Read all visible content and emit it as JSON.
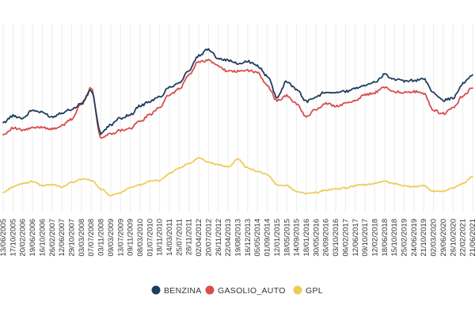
{
  "chart_data": {
    "type": "line",
    "title": "",
    "xlabel": "",
    "ylabel": "",
    "ylim": [
      0.4,
      2.1
    ],
    "grid": "vertical",
    "legend_position": "bottom-center",
    "x": [
      "13/06/2005",
      "17/10/2005",
      "20/02/2006",
      "19/06/2006",
      "16/10/2006",
      "26/02/2007",
      "12/06/2007",
      "29/10/2007",
      "03/03/2008",
      "07/07/2008",
      "03/11/2008",
      "09/03/2009",
      "13/07/2009",
      "09/11/2009",
      "08/03/2010",
      "01/07/2010",
      "18/11/2010",
      "14/03/2011",
      "25/07/2011",
      "28/11/2011",
      "02/04/2012",
      "20/07/2012",
      "26/11/2012",
      "22/04/2013",
      "19/08/2013",
      "16/12/2013",
      "05/05/2014",
      "01/09/2014",
      "12/01/2015",
      "18/05/2015",
      "14/09/2015",
      "18/01/2016",
      "30/05/2016",
      "26/09/2016",
      "03/10/2016",
      "06/02/2017",
      "12/06/2017",
      "09/10/2017",
      "12/02/2018",
      "18/06/2018",
      "15/10/2018",
      "25/02/2019",
      "24/06/2019",
      "21/10/2019",
      "02/03/2020",
      "29/06/2020",
      "26/10/2020",
      "22/02/2021",
      "21/06/2021"
    ],
    "series": [
      {
        "name": "BENZINA",
        "color": "#1f3d5c",
        "values": [
          1.21,
          1.27,
          1.25,
          1.32,
          1.3,
          1.26,
          1.3,
          1.33,
          1.38,
          1.5,
          1.11,
          1.19,
          1.25,
          1.28,
          1.36,
          1.4,
          1.44,
          1.53,
          1.57,
          1.68,
          1.81,
          1.87,
          1.79,
          1.77,
          1.74,
          1.76,
          1.72,
          1.63,
          1.44,
          1.58,
          1.51,
          1.4,
          1.44,
          1.49,
          1.48,
          1.49,
          1.52,
          1.55,
          1.57,
          1.64,
          1.6,
          1.58,
          1.59,
          1.6,
          1.48,
          1.41,
          1.43,
          1.56,
          1.64
        ]
      },
      {
        "name": "GASOLIO_AUTO",
        "color": "#d74e4e",
        "values": [
          1.1,
          1.16,
          1.14,
          1.16,
          1.17,
          1.15,
          1.18,
          1.24,
          1.38,
          1.52,
          1.07,
          1.11,
          1.14,
          1.16,
          1.22,
          1.28,
          1.35,
          1.46,
          1.51,
          1.64,
          1.76,
          1.77,
          1.72,
          1.67,
          1.67,
          1.68,
          1.66,
          1.54,
          1.41,
          1.45,
          1.38,
          1.26,
          1.33,
          1.38,
          1.36,
          1.38,
          1.41,
          1.46,
          1.48,
          1.53,
          1.49,
          1.48,
          1.49,
          1.47,
          1.32,
          1.29,
          1.34,
          1.45,
          1.52
        ]
      },
      {
        "name": "GPL",
        "color": "#efcc5a",
        "values": [
          0.58,
          0.63,
          0.66,
          0.68,
          0.64,
          0.65,
          0.63,
          0.67,
          0.7,
          0.69,
          0.61,
          0.55,
          0.58,
          0.62,
          0.65,
          0.68,
          0.69,
          0.75,
          0.8,
          0.84,
          0.89,
          0.85,
          0.83,
          0.81,
          0.88,
          0.8,
          0.77,
          0.74,
          0.65,
          0.64,
          0.59,
          0.57,
          0.58,
          0.6,
          0.61,
          0.62,
          0.64,
          0.65,
          0.66,
          0.68,
          0.66,
          0.64,
          0.63,
          0.64,
          0.59,
          0.59,
          0.62,
          0.66,
          0.72
        ]
      }
    ]
  }
}
